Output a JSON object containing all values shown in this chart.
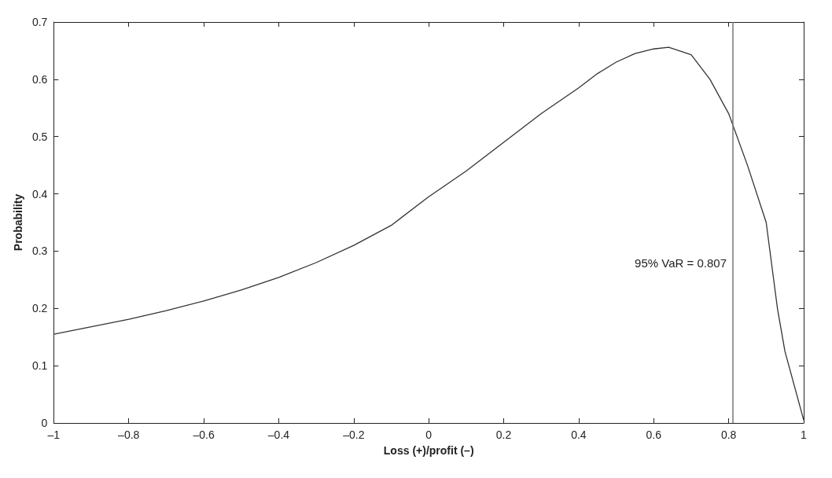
{
  "chart_data": {
    "type": "line",
    "xlabel": "Loss (+)/profit (–)",
    "ylabel": "Probability",
    "x": [
      -1,
      -0.9,
      -0.8,
      -0.7,
      -0.6,
      -0.5,
      -0.4,
      -0.3,
      -0.2,
      -0.1,
      0,
      0.1,
      0.2,
      0.3,
      0.4,
      0.45,
      0.5,
      0.55,
      0.6,
      0.64,
      0.7,
      0.75,
      0.8,
      0.85,
      0.9,
      0.93,
      0.95,
      1
    ],
    "series": [
      {
        "color": "#333333",
        "values": [
          0.155,
          0.168,
          0.181,
          0.196,
          0.213,
          0.232,
          0.254,
          0.28,
          0.31,
          0.345,
          0.395,
          0.44,
          0.49,
          0.54,
          0.585,
          0.61,
          0.63,
          0.645,
          0.653,
          0.656,
          0.643,
          0.6,
          0.54,
          0.45,
          0.35,
          0.2,
          0.125,
          0.005
        ]
      }
    ],
    "xlim": [
      -1,
      1
    ],
    "ylim": [
      0,
      0.7
    ],
    "xticks": [
      {
        "value": -1,
        "label": "–1"
      },
      {
        "value": -0.8,
        "label": "–0.8"
      },
      {
        "value": -0.6,
        "label": "–0.6"
      },
      {
        "value": -0.4,
        "label": "–0.4"
      },
      {
        "value": -0.2,
        "label": "–0.2"
      },
      0,
      0.2,
      0.4,
      0.6,
      0.8,
      1
    ],
    "yticks": [
      0,
      0.1,
      0.2,
      0.3,
      0.4,
      0.5,
      0.6,
      0.7
    ],
    "ref_lines": [
      {
        "axis": "x",
        "value": 0.807,
        "label": "95% VaR = 0.807",
        "color": "#777777"
      }
    ],
    "grid": false,
    "marker": "none",
    "line_style": "solid"
  }
}
